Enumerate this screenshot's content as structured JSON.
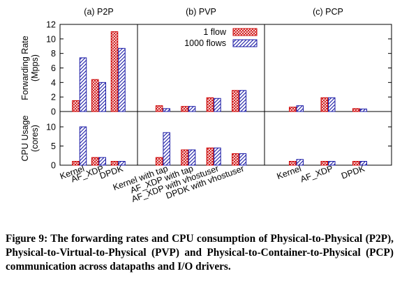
{
  "caption": {
    "label": "Figure 9:",
    "text": "The forwarding rates and CPU consumption of Physical-to-Physical (P2P), Physical-to-Virtual-to-Physical (PVP) and Physical-to-Container-to-Physical (PCP) communication across datapaths and I/O drivers."
  },
  "chart_data": {
    "type": "bar",
    "subplot_titles": [
      "(a) P2P",
      "(b) PVP",
      "(c) PCP"
    ],
    "series": [
      {
        "name": "1 flow",
        "pattern": "crosshatch",
        "color": "#cc0000"
      },
      {
        "name": "1000 flows",
        "pattern": "diagonal",
        "color": "#0000aa"
      }
    ],
    "legend": {
      "placement": "top-right of panel (b)"
    },
    "rows": [
      {
        "ylabel": "Forwarding Rate\n(Mpps)",
        "ylim": [
          0,
          12
        ],
        "yticks": [
          0,
          2,
          4,
          6,
          8,
          10,
          12
        ]
      },
      {
        "ylabel": "CPU Usage\n(cores)",
        "ylim": [
          0,
          14
        ],
        "yticks": [
          0,
          5,
          10
        ]
      }
    ],
    "panels": [
      {
        "title": "(a) P2P",
        "categories": [
          "Kernel",
          "AF_XDP",
          "DPDK"
        ],
        "forwarding_rate": {
          "1 flow": [
            1.5,
            4.4,
            11.0
          ],
          "1000 flows": [
            7.4,
            4.0,
            8.7
          ]
        },
        "cpu_usage": {
          "1 flow": [
            1.0,
            2.0,
            1.0
          ],
          "1000 flows": [
            10.0,
            2.0,
            1.0
          ]
        }
      },
      {
        "title": "(b) PVP",
        "categories": [
          "Kernel with tap",
          "AF_XDP with tap",
          "AF_XDP with vhostuser",
          "DPDK with vhostuser"
        ],
        "forwarding_rate": {
          "1 flow": [
            0.8,
            0.7,
            1.9,
            2.9
          ],
          "1000 flows": [
            0.4,
            0.7,
            1.8,
            2.9
          ]
        },
        "cpu_usage": {
          "1 flow": [
            2.0,
            4.0,
            4.5,
            3.0
          ],
          "1000 flows": [
            8.5,
            4.0,
            4.5,
            3.0
          ]
        }
      },
      {
        "title": "(c) PCP",
        "categories": [
          "Kernel",
          "AF_XDP",
          "DPDK"
        ],
        "forwarding_rate": {
          "1 flow": [
            0.6,
            1.9,
            0.4
          ],
          "1000 flows": [
            0.8,
            1.9,
            0.35
          ]
        },
        "cpu_usage": {
          "1 flow": [
            1.0,
            1.0,
            1.0
          ],
          "1000 flows": [
            1.5,
            1.0,
            1.0
          ]
        }
      }
    ],
    "grid": false
  }
}
